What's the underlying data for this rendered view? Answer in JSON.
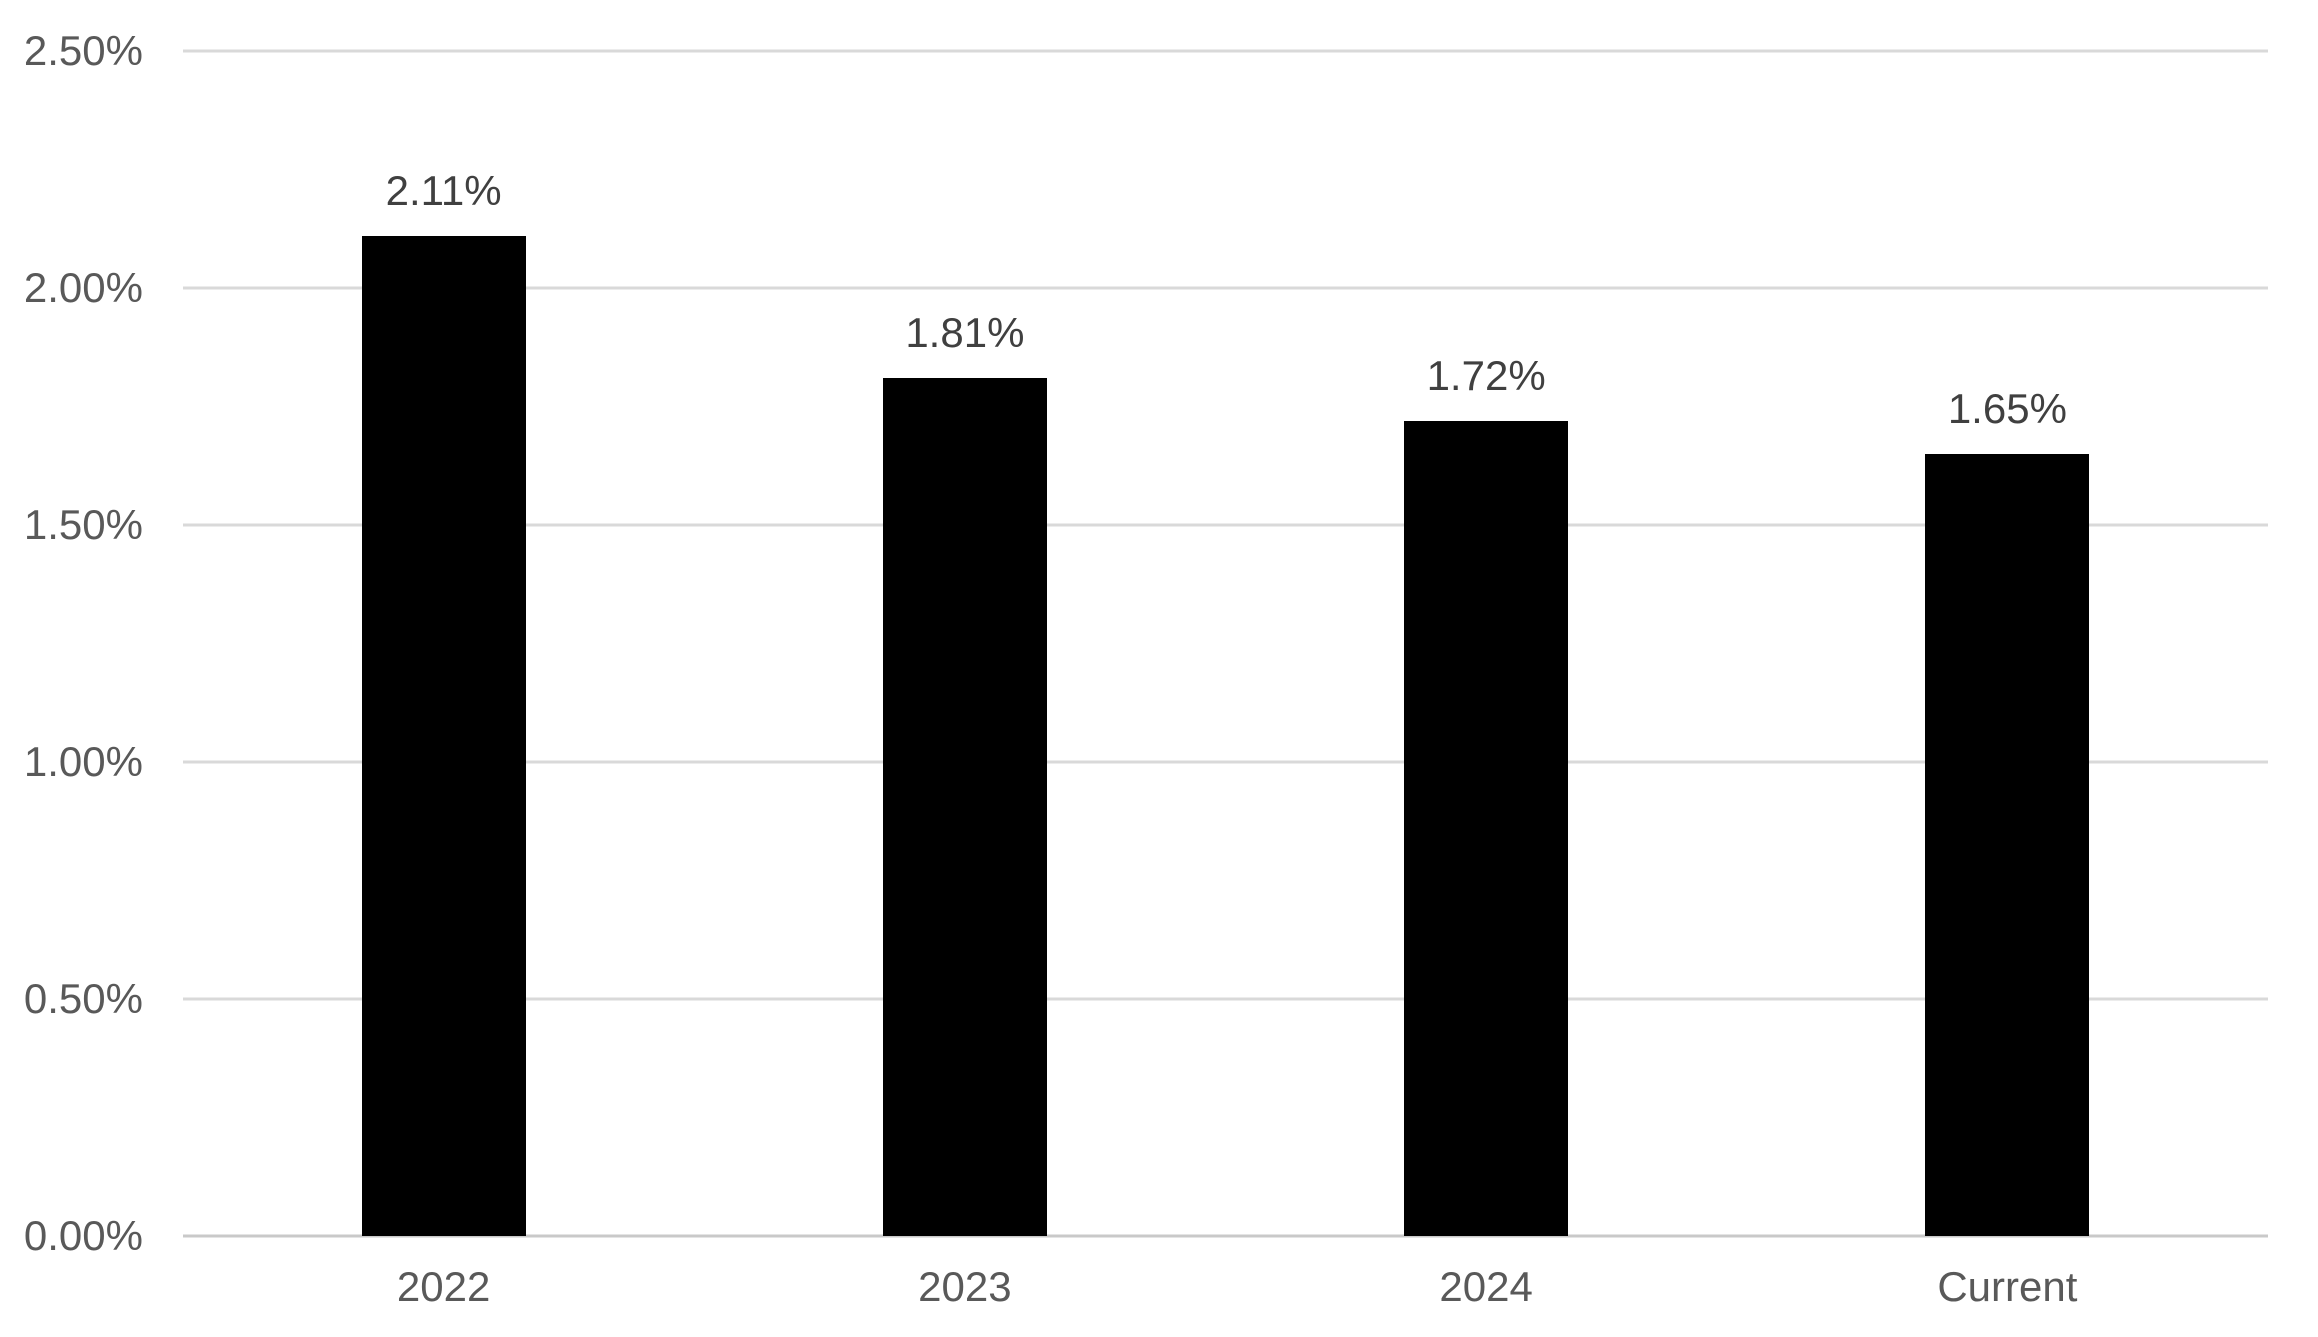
{
  "chart_data": {
    "type": "bar",
    "categories": [
      "2022",
      "2023",
      "2024",
      "Current"
    ],
    "values": [
      2.11,
      1.81,
      1.72,
      1.65
    ],
    "value_labels": [
      "2.11%",
      "1.81%",
      "1.72%",
      "1.65%"
    ],
    "title": "",
    "xlabel": "",
    "ylabel": "",
    "ylim": [
      0,
      2.5
    ],
    "yticks": [
      0,
      0.5,
      1.0,
      1.5,
      2.0,
      2.5
    ],
    "ytick_labels": [
      "0.00%",
      "0.50%",
      "1.00%",
      "1.50%",
      "2.00%",
      "2.50%"
    ],
    "grid": "horizontal",
    "legend": "none",
    "colors": {
      "bar": "#000000",
      "gridline": "#d9d9d9",
      "axis_line": "#c9c9c9",
      "axis_text": "#595959",
      "data_label_text": "#404040",
      "background": "#ffffff"
    }
  }
}
